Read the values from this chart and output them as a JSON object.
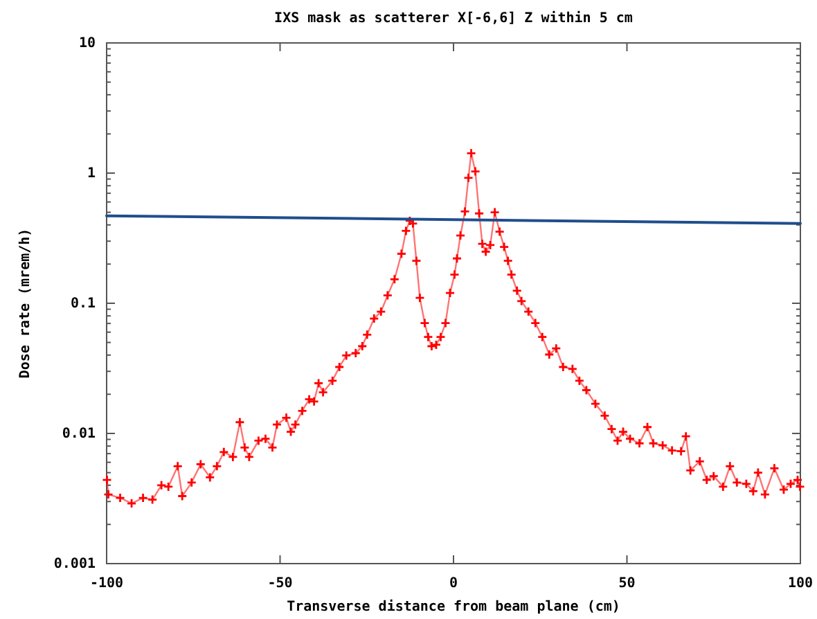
{
  "chart_data": {
    "type": "line",
    "title": "IXS mask as scatterer X[-6,6] Z within 5 cm",
    "xlabel": "Transverse distance from beam plane (cm)",
    "ylabel": "Dose rate (mrem/h)",
    "log": "y",
    "xlim": [
      -100,
      100
    ],
    "xticks": [
      -100,
      -50,
      0,
      50,
      100
    ],
    "ylim": [
      0.001,
      10
    ],
    "yticks": [
      0.001,
      0.01,
      0.1,
      1,
      10
    ],
    "grid": false,
    "series": [
      {
        "color": "#ff0000",
        "marker": "cross",
        "line_style": "solid",
        "x": [
          -99.9,
          -99.5,
          -96.1,
          -92.8,
          -89.5,
          -86.8,
          -84.2,
          -82.2,
          -79.5,
          -78.2,
          -75.5,
          -72.9,
          -70.2,
          -68.2,
          -66.2,
          -63.6,
          -61.6,
          -60.2,
          -58.9,
          -56.2,
          -54.2,
          -52.2,
          -50.9,
          -48.2,
          -46.9,
          -45.6,
          -43.6,
          -41.6,
          -40.2,
          -38.9,
          -37.6,
          -34.9,
          -32.9,
          -30.9,
          -28.2,
          -26.3,
          -24.9,
          -22.9,
          -20.9,
          -19.0,
          -17.0,
          -15.0,
          -13.7,
          -12.6,
          -11.7,
          -10.7,
          -9.7,
          -8.3,
          -7.3,
          -6.3,
          -5.0,
          -3.7,
          -2.3,
          -1.0,
          0.3,
          1.0,
          2.0,
          3.3,
          4.3,
          5.1,
          6.3,
          7.4,
          8.3,
          9.3,
          10.6,
          11.9,
          13.3,
          14.6,
          15.7,
          16.7,
          18.3,
          19.6,
          21.6,
          23.6,
          25.6,
          27.6,
          29.6,
          31.6,
          34.3,
          36.3,
          38.3,
          40.9,
          43.6,
          45.6,
          47.3,
          48.9,
          50.9,
          53.6,
          55.9,
          57.6,
          60.3,
          63.0,
          65.6,
          67.0,
          68.3,
          71.0,
          73.0,
          75.0,
          77.7,
          79.7,
          81.7,
          84.4,
          86.4,
          87.8,
          89.8,
          92.5,
          95.2,
          97.2,
          99.2,
          99.9
        ],
        "values": [
          0.0044,
          0.0034,
          0.0032,
          0.0029,
          0.0032,
          0.0031,
          0.004,
          0.0039,
          0.0056,
          0.0033,
          0.0042,
          0.0058,
          0.0046,
          0.0056,
          0.0072,
          0.0066,
          0.0122,
          0.0078,
          0.0066,
          0.0088,
          0.0091,
          0.0078,
          0.0117,
          0.0132,
          0.0103,
          0.0117,
          0.0149,
          0.0183,
          0.0176,
          0.0243,
          0.0207,
          0.0254,
          0.0324,
          0.0397,
          0.0414,
          0.0468,
          0.0574,
          0.0763,
          0.0863,
          0.115,
          0.153,
          0.24,
          0.36,
          0.43,
          0.41,
          0.212,
          0.11,
          0.0705,
          0.0551,
          0.0468,
          0.048,
          0.0551,
          0.0705,
          0.12,
          0.166,
          0.221,
          0.332,
          0.507,
          0.92,
          1.42,
          1.03,
          0.49,
          0.286,
          0.249,
          0.28,
          0.5,
          0.355,
          0.271,
          0.212,
          0.166,
          0.125,
          0.104,
          0.0863,
          0.0705,
          0.0551,
          0.0404,
          0.045,
          0.0324,
          0.0313,
          0.0254,
          0.0215,
          0.0169,
          0.0137,
          0.0108,
          0.0088,
          0.0103,
          0.0091,
          0.0084,
          0.0112,
          0.0084,
          0.0081,
          0.0074,
          0.0073,
          0.0095,
          0.0052,
          0.0061,
          0.0044,
          0.0047,
          0.0039,
          0.0056,
          0.0042,
          0.0041,
          0.0036,
          0.005,
          0.0034,
          0.0054,
          0.0037,
          0.0041,
          0.0044,
          0.0039
        ]
      },
      {
        "color": "#1f4e8c",
        "marker": "none",
        "line_style": "solid",
        "x": [
          -100,
          100
        ],
        "values": [
          0.47,
          0.41
        ]
      }
    ]
  }
}
